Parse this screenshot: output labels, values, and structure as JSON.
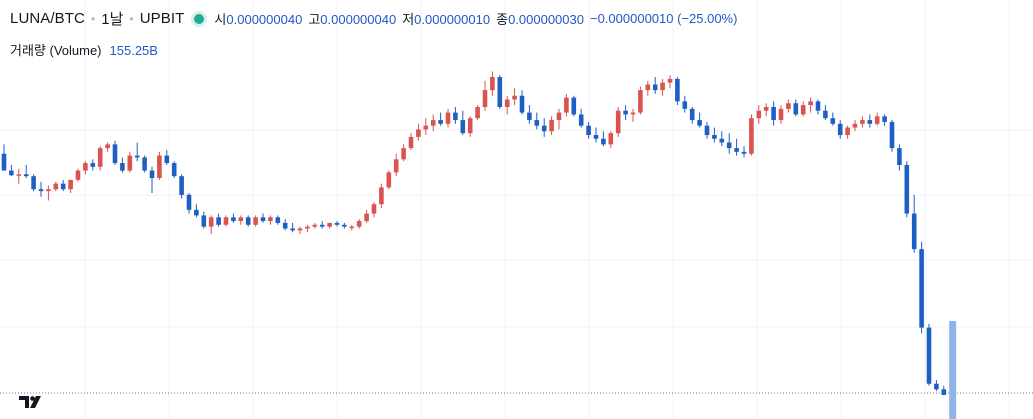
{
  "header": {
    "symbol": "LUNA/BTC",
    "interval": "1날",
    "exchange": "UPBIT",
    "open_label": "시",
    "open_value": "0.000000040",
    "high_label": "고",
    "high_value": "0.000000040",
    "low_label": "저",
    "low_value": "0.000000010",
    "close_label": "종",
    "close_value": "0.000000030",
    "change": "−0.000000010 (−25.00%)"
  },
  "volume": {
    "label": "거래량 (Volume)",
    "value": "155.25B"
  },
  "colors": {
    "up": "#d9534f",
    "down": "#1e5fc4",
    "volume_down": "#8fb3e6",
    "grid": "#f0f3fa",
    "status": "#22ab94"
  },
  "chart_data": {
    "type": "candlestick",
    "grid": true,
    "candles": [
      {
        "o": 88,
        "h": 98,
        "l": 70,
        "c": 70
      },
      {
        "o": 70,
        "h": 76,
        "l": 64,
        "c": 65
      },
      {
        "o": 65,
        "h": 72,
        "l": 56,
        "c": 66
      },
      {
        "o": 66,
        "h": 76,
        "l": 62,
        "c": 64
      },
      {
        "o": 64,
        "h": 66,
        "l": 48,
        "c": 50
      },
      {
        "o": 50,
        "h": 58,
        "l": 42,
        "c": 48
      },
      {
        "o": 48,
        "h": 54,
        "l": 38,
        "c": 50
      },
      {
        "o": 50,
        "h": 58,
        "l": 48,
        "c": 56
      },
      {
        "o": 56,
        "h": 60,
        "l": 48,
        "c": 50
      },
      {
        "o": 50,
        "h": 60,
        "l": 46,
        "c": 60
      },
      {
        "o": 60,
        "h": 72,
        "l": 58,
        "c": 70
      },
      {
        "o": 70,
        "h": 80,
        "l": 66,
        "c": 78
      },
      {
        "o": 78,
        "h": 82,
        "l": 70,
        "c": 74
      },
      {
        "o": 74,
        "h": 96,
        "l": 70,
        "c": 94
      },
      {
        "o": 94,
        "h": 100,
        "l": 90,
        "c": 98
      },
      {
        "o": 98,
        "h": 102,
        "l": 76,
        "c": 78
      },
      {
        "o": 78,
        "h": 84,
        "l": 68,
        "c": 70
      },
      {
        "o": 70,
        "h": 90,
        "l": 68,
        "c": 86
      },
      {
        "o": 86,
        "h": 100,
        "l": 80,
        "c": 84
      },
      {
        "o": 84,
        "h": 86,
        "l": 68,
        "c": 70
      },
      {
        "o": 70,
        "h": 74,
        "l": 46,
        "c": 62
      },
      {
        "o": 62,
        "h": 90,
        "l": 60,
        "c": 86
      },
      {
        "o": 86,
        "h": 92,
        "l": 76,
        "c": 78
      },
      {
        "o": 78,
        "h": 80,
        "l": 62,
        "c": 64
      },
      {
        "o": 64,
        "h": 66,
        "l": 40,
        "c": 44
      },
      {
        "o": 44,
        "h": 46,
        "l": 24,
        "c": 28
      },
      {
        "o": 28,
        "h": 34,
        "l": 20,
        "c": 22
      },
      {
        "o": 22,
        "h": 26,
        "l": 8,
        "c": 10
      },
      {
        "o": 10,
        "h": 22,
        "l": 2,
        "c": 20
      },
      {
        "o": 20,
        "h": 24,
        "l": 10,
        "c": 12
      },
      {
        "o": 12,
        "h": 22,
        "l": 10,
        "c": 20
      },
      {
        "o": 20,
        "h": 24,
        "l": 14,
        "c": 16
      },
      {
        "o": 16,
        "h": 22,
        "l": 12,
        "c": 20
      },
      {
        "o": 20,
        "h": 22,
        "l": 10,
        "c": 12
      },
      {
        "o": 12,
        "h": 22,
        "l": 10,
        "c": 20
      },
      {
        "o": 20,
        "h": 24,
        "l": 14,
        "c": 16
      },
      {
        "o": 16,
        "h": 22,
        "l": 12,
        "c": 20
      },
      {
        "o": 20,
        "h": 22,
        "l": 12,
        "c": 14
      },
      {
        "o": 14,
        "h": 18,
        "l": 6,
        "c": 8
      },
      {
        "o": 8,
        "h": 14,
        "l": 4,
        "c": 6
      },
      {
        "o": 6,
        "h": 10,
        "l": 2,
        "c": 8
      },
      {
        "o": 8,
        "h": 12,
        "l": 4,
        "c": 10
      },
      {
        "o": 10,
        "h": 14,
        "l": 8,
        "c": 12
      },
      {
        "o": 12,
        "h": 16,
        "l": 8,
        "c": 10
      },
      {
        "o": 10,
        "h": 14,
        "l": 8,
        "c": 14
      },
      {
        "o": 14,
        "h": 16,
        "l": 10,
        "c": 12
      },
      {
        "o": 12,
        "h": 14,
        "l": 8,
        "c": 10
      },
      {
        "o": 10,
        "h": 12,
        "l": 6,
        "c": 10
      },
      {
        "o": 10,
        "h": 18,
        "l": 8,
        "c": 16
      },
      {
        "o": 16,
        "h": 28,
        "l": 14,
        "c": 24
      },
      {
        "o": 24,
        "h": 36,
        "l": 20,
        "c": 34
      },
      {
        "o": 34,
        "h": 56,
        "l": 30,
        "c": 52
      },
      {
        "o": 52,
        "h": 70,
        "l": 50,
        "c": 68
      },
      {
        "o": 68,
        "h": 88,
        "l": 64,
        "c": 82
      },
      {
        "o": 82,
        "h": 98,
        "l": 80,
        "c": 94
      },
      {
        "o": 94,
        "h": 110,
        "l": 92,
        "c": 106
      },
      {
        "o": 106,
        "h": 120,
        "l": 102,
        "c": 114
      },
      {
        "o": 114,
        "h": 126,
        "l": 108,
        "c": 118
      },
      {
        "o": 118,
        "h": 130,
        "l": 112,
        "c": 124
      },
      {
        "o": 124,
        "h": 132,
        "l": 118,
        "c": 120
      },
      {
        "o": 120,
        "h": 136,
        "l": 116,
        "c": 132
      },
      {
        "o": 132,
        "h": 138,
        "l": 120,
        "c": 124
      },
      {
        "o": 124,
        "h": 134,
        "l": 108,
        "c": 110
      },
      {
        "o": 110,
        "h": 128,
        "l": 106,
        "c": 126
      },
      {
        "o": 126,
        "h": 140,
        "l": 124,
        "c": 138
      },
      {
        "o": 138,
        "h": 166,
        "l": 134,
        "c": 156
      },
      {
        "o": 156,
        "h": 176,
        "l": 150,
        "c": 170
      },
      {
        "o": 170,
        "h": 172,
        "l": 136,
        "c": 138
      },
      {
        "o": 138,
        "h": 150,
        "l": 130,
        "c": 146
      },
      {
        "o": 146,
        "h": 158,
        "l": 140,
        "c": 150
      },
      {
        "o": 150,
        "h": 156,
        "l": 130,
        "c": 132
      },
      {
        "o": 132,
        "h": 140,
        "l": 120,
        "c": 124
      },
      {
        "o": 124,
        "h": 132,
        "l": 114,
        "c": 118
      },
      {
        "o": 118,
        "h": 126,
        "l": 106,
        "c": 112
      },
      {
        "o": 112,
        "h": 128,
        "l": 108,
        "c": 124
      },
      {
        "o": 124,
        "h": 136,
        "l": 114,
        "c": 132
      },
      {
        "o": 132,
        "h": 152,
        "l": 128,
        "c": 148
      },
      {
        "o": 148,
        "h": 150,
        "l": 128,
        "c": 130
      },
      {
        "o": 130,
        "h": 136,
        "l": 116,
        "c": 118
      },
      {
        "o": 118,
        "h": 122,
        "l": 104,
        "c": 108
      },
      {
        "o": 108,
        "h": 116,
        "l": 100,
        "c": 104
      },
      {
        "o": 104,
        "h": 112,
        "l": 96,
        "c": 98
      },
      {
        "o": 98,
        "h": 112,
        "l": 94,
        "c": 110
      },
      {
        "o": 110,
        "h": 138,
        "l": 106,
        "c": 134
      },
      {
        "o": 134,
        "h": 140,
        "l": 124,
        "c": 130
      },
      {
        "o": 130,
        "h": 136,
        "l": 122,
        "c": 132
      },
      {
        "o": 132,
        "h": 160,
        "l": 130,
        "c": 156
      },
      {
        "o": 156,
        "h": 166,
        "l": 150,
        "c": 162
      },
      {
        "o": 162,
        "h": 170,
        "l": 152,
        "c": 156
      },
      {
        "o": 156,
        "h": 168,
        "l": 150,
        "c": 164
      },
      {
        "o": 164,
        "h": 172,
        "l": 158,
        "c": 168
      },
      {
        "o": 168,
        "h": 170,
        "l": 140,
        "c": 144
      },
      {
        "o": 144,
        "h": 150,
        "l": 132,
        "c": 136
      },
      {
        "o": 136,
        "h": 138,
        "l": 120,
        "c": 124
      },
      {
        "o": 124,
        "h": 132,
        "l": 116,
        "c": 118
      },
      {
        "o": 118,
        "h": 122,
        "l": 104,
        "c": 108
      },
      {
        "o": 108,
        "h": 116,
        "l": 100,
        "c": 104
      },
      {
        "o": 104,
        "h": 112,
        "l": 96,
        "c": 100
      },
      {
        "o": 100,
        "h": 110,
        "l": 88,
        "c": 94
      },
      {
        "o": 94,
        "h": 104,
        "l": 86,
        "c": 90
      },
      {
        "o": 90,
        "h": 96,
        "l": 84,
        "c": 88
      },
      {
        "o": 88,
        "h": 130,
        "l": 86,
        "c": 126
      },
      {
        "o": 126,
        "h": 140,
        "l": 120,
        "c": 134
      },
      {
        "o": 134,
        "h": 142,
        "l": 128,
        "c": 138
      },
      {
        "o": 138,
        "h": 144,
        "l": 118,
        "c": 124
      },
      {
        "o": 124,
        "h": 140,
        "l": 120,
        "c": 136
      },
      {
        "o": 136,
        "h": 146,
        "l": 132,
        "c": 142
      },
      {
        "o": 142,
        "h": 146,
        "l": 128,
        "c": 130
      },
      {
        "o": 130,
        "h": 144,
        "l": 128,
        "c": 140
      },
      {
        "o": 140,
        "h": 148,
        "l": 132,
        "c": 144
      },
      {
        "o": 144,
        "h": 146,
        "l": 130,
        "c": 134
      },
      {
        "o": 134,
        "h": 140,
        "l": 124,
        "c": 126
      },
      {
        "o": 126,
        "h": 132,
        "l": 118,
        "c": 120
      },
      {
        "o": 120,
        "h": 124,
        "l": 104,
        "c": 108
      },
      {
        "o": 108,
        "h": 118,
        "l": 104,
        "c": 116
      },
      {
        "o": 116,
        "h": 124,
        "l": 112,
        "c": 120
      },
      {
        "o": 120,
        "h": 128,
        "l": 116,
        "c": 124
      },
      {
        "o": 124,
        "h": 130,
        "l": 116,
        "c": 120
      },
      {
        "o": 120,
        "h": 132,
        "l": 118,
        "c": 128
      },
      {
        "o": 128,
        "h": 130,
        "l": 118,
        "c": 122
      },
      {
        "o": 122,
        "h": 124,
        "l": 90,
        "c": 94
      },
      {
        "o": 94,
        "h": 98,
        "l": 70,
        "c": 76
      },
      {
        "o": 76,
        "h": 80,
        "l": 20,
        "c": 24
      },
      {
        "o": 24,
        "h": 44,
        "l": -18,
        "c": -14
      },
      {
        "o": -14,
        "h": -6,
        "l": -104,
        "c": -98
      },
      {
        "o": -98,
        "h": -94,
        "l": -160,
        "c": -158
      },
      {
        "o": -158,
        "h": -154,
        "l": -166,
        "c": -164
      },
      {
        "o": -164,
        "h": -160,
        "l": -170,
        "c": -170
      }
    ],
    "volume_bar": {
      "value": 155.25,
      "direction": "down"
    }
  }
}
